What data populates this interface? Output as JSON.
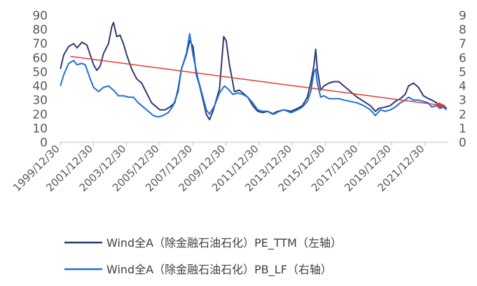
{
  "chart_data": {
    "type": "line",
    "title": "",
    "x_tick_labels": [
      "1999/12/30",
      "2001/12/30",
      "2003/12/30",
      "2005/12/30",
      "2007/12/30",
      "2009/12/30",
      "2011/12/30",
      "2013/12/30",
      "2015/12/30",
      "2017/12/30",
      "2019/12/30",
      "2021/12/30"
    ],
    "x_range": [
      1999.99,
      2023.4
    ],
    "left_axis": {
      "ylim": [
        0,
        90
      ],
      "ticks": [
        "0",
        "10",
        "20",
        "30",
        "40",
        "50",
        "60",
        "70",
        "80",
        "90"
      ]
    },
    "right_axis": {
      "ylim": [
        0,
        9
      ],
      "ticks": [
        "0",
        "1",
        "2",
        "3",
        "4",
        "5",
        "6",
        "7",
        "8",
        "9"
      ]
    },
    "grid": false,
    "legend_position": "bottom",
    "series": [
      {
        "name": "Wind全A（除金融石油石化）PE_TTM（左轴）",
        "axis": "left",
        "color": "#2E3B6E",
        "points": [
          [
            2000.0,
            52
          ],
          [
            2000.2,
            62
          ],
          [
            2000.5,
            68
          ],
          [
            2000.8,
            70
          ],
          [
            2001.0,
            67
          ],
          [
            2001.3,
            71
          ],
          [
            2001.6,
            69
          ],
          [
            2001.8,
            62
          ],
          [
            2002.0,
            55
          ],
          [
            2002.2,
            51
          ],
          [
            2002.4,
            54
          ],
          [
            2002.6,
            63
          ],
          [
            2002.9,
            70
          ],
          [
            2003.1,
            82
          ],
          [
            2003.2,
            85
          ],
          [
            2003.4,
            75
          ],
          [
            2003.6,
            76
          ],
          [
            2003.8,
            70
          ],
          [
            2004.0,
            62
          ],
          [
            2004.3,
            52
          ],
          [
            2004.6,
            45
          ],
          [
            2004.9,
            42
          ],
          [
            2005.2,
            35
          ],
          [
            2005.5,
            28
          ],
          [
            2005.8,
            25
          ],
          [
            2006.0,
            23
          ],
          [
            2006.3,
            23
          ],
          [
            2006.6,
            25
          ],
          [
            2006.9,
            28
          ],
          [
            2007.1,
            38
          ],
          [
            2007.3,
            52
          ],
          [
            2007.6,
            62
          ],
          [
            2007.8,
            72
          ],
          [
            2008.0,
            68
          ],
          [
            2008.2,
            48
          ],
          [
            2008.4,
            40
          ],
          [
            2008.6,
            30
          ],
          [
            2008.8,
            20
          ],
          [
            2009.0,
            16
          ],
          [
            2009.2,
            22
          ],
          [
            2009.4,
            30
          ],
          [
            2009.6,
            38
          ],
          [
            2009.75,
            60
          ],
          [
            2009.85,
            75
          ],
          [
            2010.0,
            72
          ],
          [
            2010.2,
            55
          ],
          [
            2010.5,
            36
          ],
          [
            2010.8,
            37
          ],
          [
            2011.0,
            35
          ],
          [
            2011.3,
            32
          ],
          [
            2011.6,
            26
          ],
          [
            2011.9,
            22
          ],
          [
            2012.2,
            21
          ],
          [
            2012.5,
            22
          ],
          [
            2012.8,
            20
          ],
          [
            2013.1,
            22
          ],
          [
            2013.5,
            23
          ],
          [
            2013.9,
            22
          ],
          [
            2014.3,
            24
          ],
          [
            2014.6,
            26
          ],
          [
            2014.9,
            32
          ],
          [
            2015.1,
            42
          ],
          [
            2015.3,
            55
          ],
          [
            2015.4,
            66
          ],
          [
            2015.5,
            52
          ],
          [
            2015.7,
            37
          ],
          [
            2015.9,
            40
          ],
          [
            2016.2,
            42
          ],
          [
            2016.5,
            43
          ],
          [
            2016.8,
            43
          ],
          [
            2017.1,
            40
          ],
          [
            2017.5,
            36
          ],
          [
            2017.9,
            32
          ],
          [
            2018.3,
            29
          ],
          [
            2018.7,
            26
          ],
          [
            2019.0,
            22
          ],
          [
            2019.2,
            24
          ],
          [
            2019.6,
            25
          ],
          [
            2019.9,
            26
          ],
          [
            2020.2,
            29
          ],
          [
            2020.5,
            31
          ],
          [
            2020.8,
            34
          ],
          [
            2021.0,
            40
          ],
          [
            2021.3,
            42
          ],
          [
            2021.6,
            39
          ],
          [
            2021.9,
            33
          ],
          [
            2022.2,
            31
          ],
          [
            2022.4,
            30
          ],
          [
            2022.7,
            28
          ],
          [
            2022.9,
            25
          ],
          [
            2023.1,
            26
          ],
          [
            2023.3,
            24
          ]
        ]
      },
      {
        "name": "Wind全A（除金融石油石化）PB_LF（右轴）",
        "axis": "right",
        "color": "#1E6FD9",
        "points": [
          [
            2000.0,
            4.0
          ],
          [
            2000.2,
            4.8
          ],
          [
            2000.5,
            5.6
          ],
          [
            2000.8,
            5.8
          ],
          [
            2001.0,
            5.5
          ],
          [
            2001.3,
            5.6
          ],
          [
            2001.5,
            5.5
          ],
          [
            2001.8,
            4.5
          ],
          [
            2002.0,
            3.9
          ],
          [
            2002.3,
            3.6
          ],
          [
            2002.6,
            3.9
          ],
          [
            2002.9,
            4.0
          ],
          [
            2003.2,
            3.7
          ],
          [
            2003.5,
            3.3
          ],
          [
            2003.8,
            3.3
          ],
          [
            2004.1,
            3.2
          ],
          [
            2004.4,
            3.2
          ],
          [
            2004.7,
            2.8
          ],
          [
            2005.0,
            2.5
          ],
          [
            2005.3,
            2.2
          ],
          [
            2005.6,
            1.9
          ],
          [
            2005.9,
            1.8
          ],
          [
            2006.2,
            1.9
          ],
          [
            2006.5,
            2.1
          ],
          [
            2006.8,
            2.6
          ],
          [
            2007.1,
            3.6
          ],
          [
            2007.3,
            5.2
          ],
          [
            2007.6,
            6.3
          ],
          [
            2007.8,
            7.7
          ],
          [
            2008.0,
            6.2
          ],
          [
            2008.3,
            4.5
          ],
          [
            2008.6,
            3.2
          ],
          [
            2008.8,
            2.3
          ],
          [
            2009.0,
            2.0
          ],
          [
            2009.3,
            2.6
          ],
          [
            2009.6,
            3.5
          ],
          [
            2009.9,
            4.0
          ],
          [
            2010.1,
            3.8
          ],
          [
            2010.4,
            3.4
          ],
          [
            2010.7,
            3.5
          ],
          [
            2011.0,
            3.4
          ],
          [
            2011.3,
            3.2
          ],
          [
            2011.6,
            2.8
          ],
          [
            2011.9,
            2.3
          ],
          [
            2012.2,
            2.2
          ],
          [
            2012.5,
            2.2
          ],
          [
            2012.9,
            2.0
          ],
          [
            2013.2,
            2.2
          ],
          [
            2013.5,
            2.3
          ],
          [
            2013.9,
            2.1
          ],
          [
            2014.3,
            2.3
          ],
          [
            2014.6,
            2.5
          ],
          [
            2014.9,
            2.9
          ],
          [
            2015.1,
            3.6
          ],
          [
            2015.3,
            5.0
          ],
          [
            2015.4,
            5.2
          ],
          [
            2015.5,
            4.2
          ],
          [
            2015.7,
            3.2
          ],
          [
            2015.9,
            3.3
          ],
          [
            2016.2,
            3.1
          ],
          [
            2016.5,
            3.1
          ],
          [
            2016.8,
            3.1
          ],
          [
            2017.1,
            3.0
          ],
          [
            2017.5,
            2.9
          ],
          [
            2017.9,
            2.8
          ],
          [
            2018.3,
            2.6
          ],
          [
            2018.7,
            2.3
          ],
          [
            2019.0,
            1.9
          ],
          [
            2019.3,
            2.3
          ],
          [
            2019.6,
            2.2
          ],
          [
            2019.9,
            2.3
          ],
          [
            2020.2,
            2.5
          ],
          [
            2020.5,
            2.8
          ],
          [
            2020.8,
            3.0
          ],
          [
            2021.0,
            3.2
          ],
          [
            2021.3,
            3.0
          ],
          [
            2021.6,
            3.0
          ],
          [
            2021.9,
            2.9
          ],
          [
            2022.2,
            2.8
          ],
          [
            2022.4,
            2.5
          ],
          [
            2022.7,
            2.6
          ],
          [
            2022.9,
            2.4
          ],
          [
            2023.1,
            2.5
          ],
          [
            2023.3,
            2.3
          ]
        ]
      }
    ],
    "trend_arrow": {
      "color": "#E53935",
      "from": [
        2000.6,
        61
      ],
      "to": [
        2023.3,
        26
      ],
      "axis": "left"
    }
  }
}
